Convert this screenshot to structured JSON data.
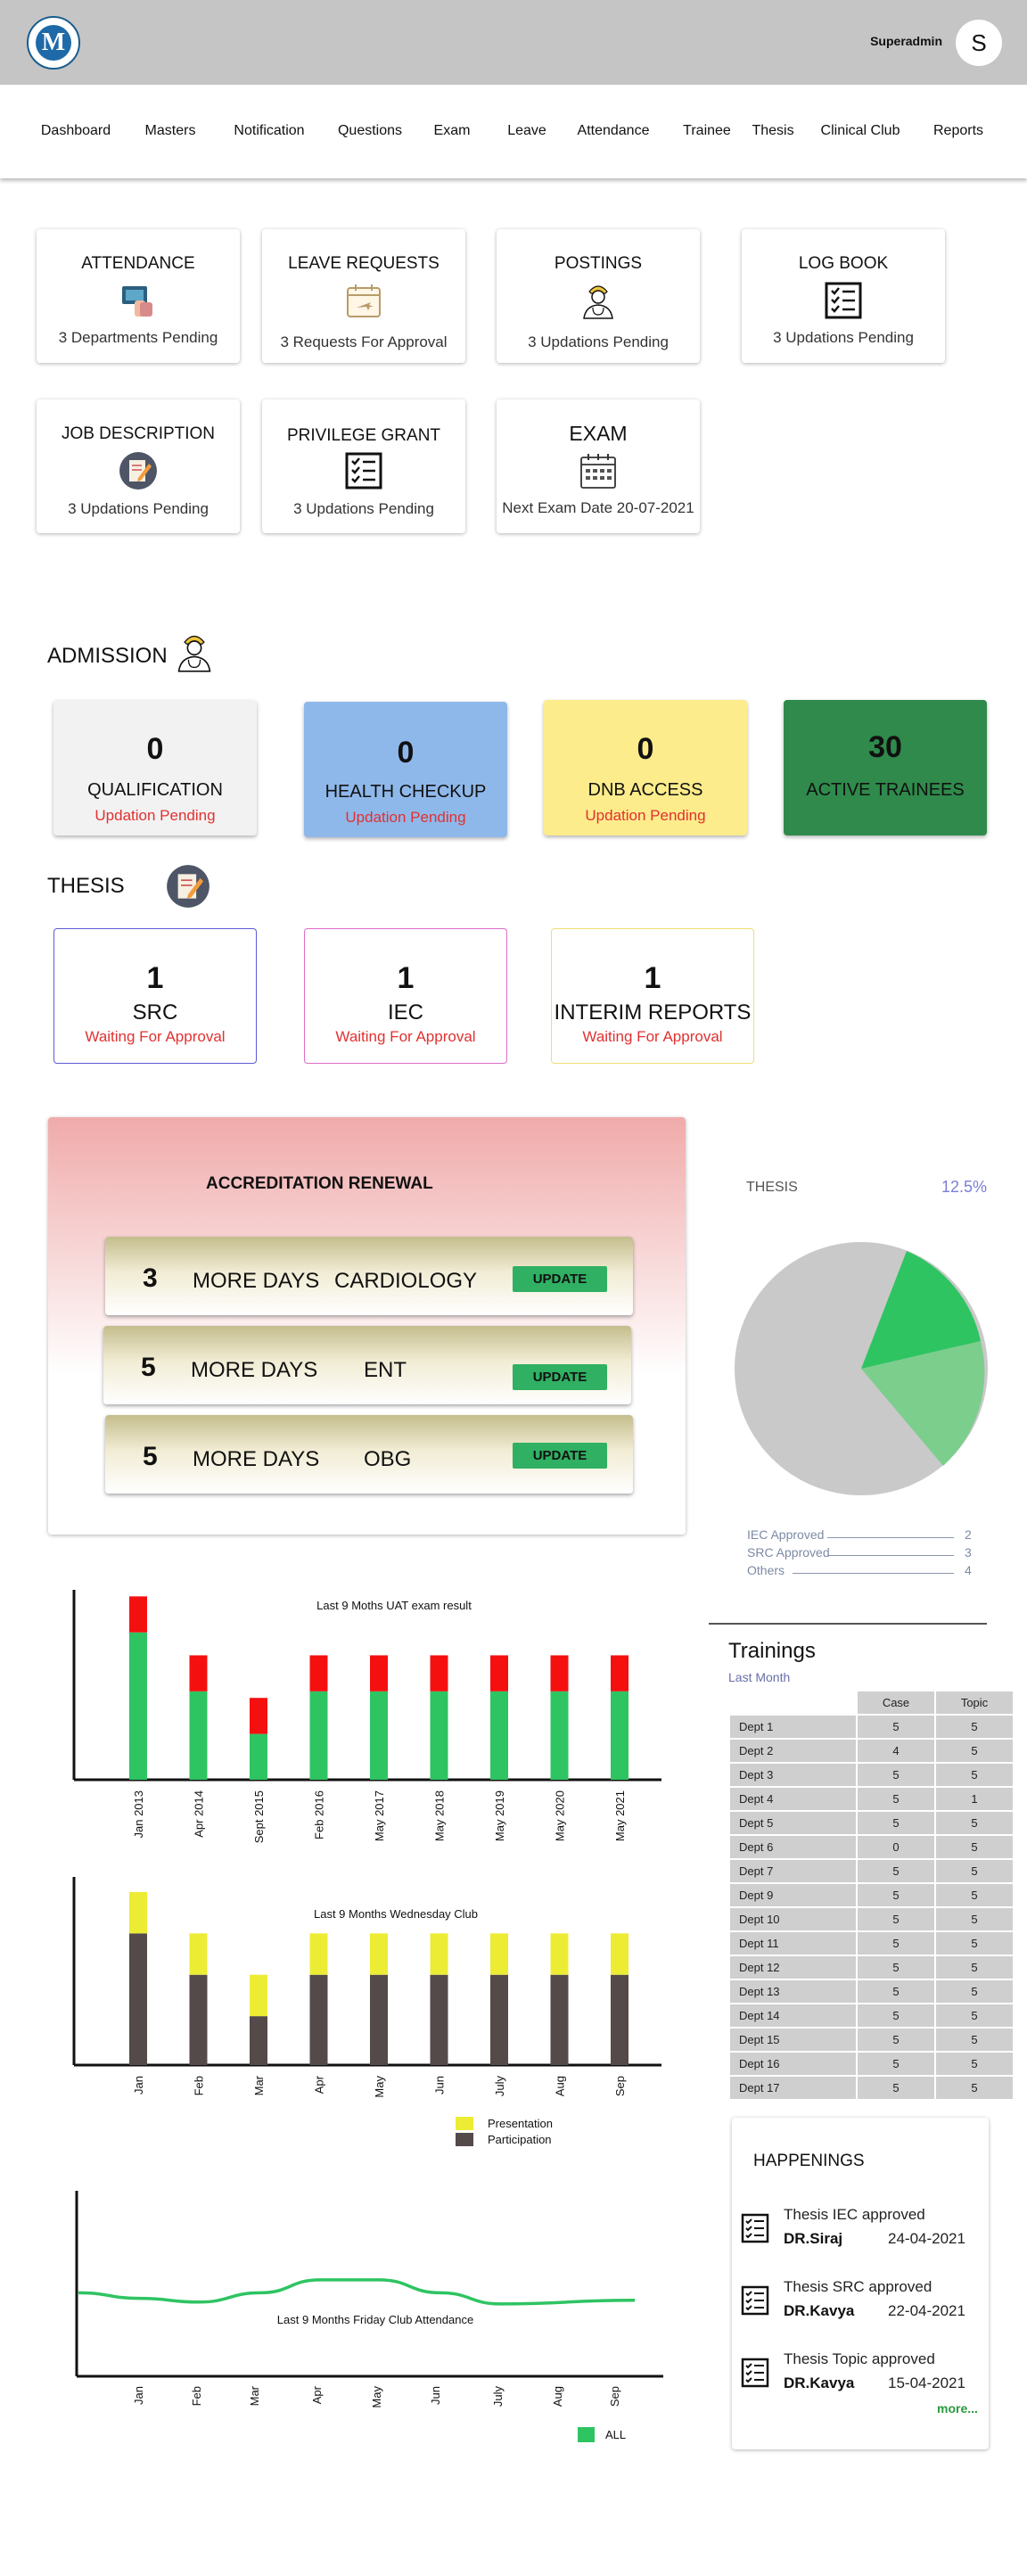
{
  "header": {
    "user": "Superadmin",
    "avatar_letter": "S",
    "logo_letter": "M"
  },
  "nav": [
    "Dashboard",
    "Masters",
    "Notification",
    "Questions",
    "Exam",
    "Leave",
    "Attendance",
    "Trainee",
    "Thesis",
    "Clinical Club",
    "Reports"
  ],
  "cards": [
    {
      "title": "ATTENDANCE",
      "sub": "3 Departments Pending",
      "icon": "attendance-icon"
    },
    {
      "title": "LEAVE REQUESTS",
      "sub": "3 Requests For Approval",
      "icon": "calendar-plane-icon"
    },
    {
      "title": "POSTINGS",
      "sub": "3 Updations Pending",
      "icon": "doctor-icon"
    },
    {
      "title": "LOG BOOK",
      "sub": "3 Updations Pending",
      "icon": "checklist-icon"
    },
    {
      "title": "JOB DESCRIPTION",
      "sub": "3 Updations Pending",
      "icon": "edit-document-icon"
    },
    {
      "title": "PRIVILEGE GRANT",
      "sub": "3 Updations Pending",
      "icon": "checklist-icon"
    },
    {
      "title": "EXAM",
      "sub": "Next Exam Date 20-07-2021",
      "icon": "calendar-icon"
    }
  ],
  "admission": {
    "title": "ADMISSION",
    "stats": [
      {
        "num": "0",
        "label": "QUALIFICATION",
        "sub": "Updation Pending",
        "color": "#f2f2f2"
      },
      {
        "num": "0",
        "label": "HEALTH CHECKUP",
        "sub": "Updation Pending",
        "color": "#8fb8ea"
      },
      {
        "num": "0",
        "label": "DNB ACCESS",
        "sub": "Updation Pending",
        "color": "#fdec8b"
      },
      {
        "num": "30",
        "label": "ACTIVE TRAINEES",
        "sub": "",
        "color": "#2f8a4b"
      }
    ]
  },
  "thesis": {
    "title": "THESIS",
    "cards": [
      {
        "num": "1",
        "label": "SRC",
        "sub": "Waiting For Approval",
        "border": "#5b5bd6"
      },
      {
        "num": "1",
        "label": "IEC",
        "sub": "Waiting For Approval",
        "border": "#e06cc8"
      },
      {
        "num": "1",
        "label": "INTERIM REPORTS",
        "sub": "Waiting For Approval",
        "border": "#eee071"
      }
    ]
  },
  "accreditation": {
    "title": "ACCREDITATION RENEWAL",
    "items": [
      {
        "days": "3",
        "label": "MORE DAYS",
        "dept": "CARDIOLOGY",
        "button": "UPDATE"
      },
      {
        "days": "5",
        "label": "MORE DAYS",
        "dept": "ENT",
        "button": "UPDATE"
      },
      {
        "days": "5",
        "label": "MORE DAYS",
        "dept": "OBG",
        "button": "UPDATE"
      }
    ]
  },
  "pie": {
    "title": "THESIS",
    "percent": "12.5%",
    "legend": [
      {
        "label": "IEC Approved",
        "value": "2"
      },
      {
        "label": "SRC Approved",
        "value": "3"
      },
      {
        "label": "Others",
        "value": "4"
      }
    ]
  },
  "chart_data": [
    {
      "type": "bar",
      "title": "Last 9 Moths UAT exam result",
      "categories": [
        "Jan 2013",
        "Apr 2014",
        "Sept 2015",
        "Feb 2016",
        "May 2017",
        "May 2018",
        "May 2019",
        "May 2020",
        "May 2021"
      ],
      "series": [
        {
          "values": [
            45,
            27,
            14,
            27,
            27,
            27,
            27,
            27,
            27
          ],
          "color": "#2ec462"
        },
        {
          "values": [
            11,
            11,
            11,
            11,
            11,
            11,
            11,
            11,
            11
          ],
          "color": "#f51010"
        }
      ],
      "stacked": true,
      "ylim": [
        0,
        58
      ]
    },
    {
      "type": "bar",
      "title": "Last 9 Months Wednesday Club",
      "categories": [
        "Jan",
        "Feb",
        "Mar",
        "Apr",
        "May",
        "Jun",
        "July",
        "Aug",
        "Sep"
      ],
      "series": [
        {
          "name": "Participation",
          "values": [
            35,
            24,
            13,
            24,
            24,
            24,
            24,
            24,
            24
          ],
          "color": "#544a4a"
        },
        {
          "name": "Presentation",
          "values": [
            11,
            11,
            11,
            11,
            11,
            11,
            11,
            11,
            11
          ],
          "color": "#ecec34"
        }
      ],
      "stacked": true,
      "ylim": [
        0,
        50
      ]
    },
    {
      "type": "line",
      "title": "Last 9 Months Friday Club Attendance",
      "categories": [
        "Jan",
        "Feb",
        "Mar",
        "Apr",
        "May",
        "Jun",
        "July",
        "Aug",
        "Sep"
      ],
      "series": [
        {
          "name": "ALL",
          "values": [
            45,
            42,
            40,
            45,
            52,
            52,
            45,
            39,
            41
          ],
          "color": "#2ec462"
        }
      ],
      "ylim": [
        0,
        100
      ]
    }
  ],
  "trainings": {
    "title": "Trainings",
    "subtitle": "Last Month",
    "columns": [
      "Case",
      "Topic"
    ],
    "rows": [
      [
        "Dept 1",
        "5",
        "5"
      ],
      [
        "Dept 2",
        "4",
        "5"
      ],
      [
        "Dept 3",
        "5",
        "5"
      ],
      [
        "Dept 4",
        "5",
        "1"
      ],
      [
        "Dept 5",
        "5",
        "5"
      ],
      [
        "Dept 6",
        "0",
        "5"
      ],
      [
        "Dept 7",
        "5",
        "5"
      ],
      [
        "Dept 9",
        "5",
        "5"
      ],
      [
        "Dept 10",
        "5",
        "5"
      ],
      [
        "Dept 11",
        "5",
        "5"
      ],
      [
        "Dept 12",
        "5",
        "5"
      ],
      [
        "Dept 13",
        "5",
        "5"
      ],
      [
        "Dept 14",
        "5",
        "5"
      ],
      [
        "Dept 15",
        "5",
        "5"
      ],
      [
        "Dept 16",
        "5",
        "5"
      ],
      [
        "Dept 17",
        "5",
        "5"
      ]
    ]
  },
  "happenings": {
    "title": "HAPPENINGS",
    "items": [
      {
        "text": "Thesis IEC approved",
        "name": "DR.Siraj",
        "date": "24-04-2021"
      },
      {
        "text": "Thesis SRC  approved",
        "name": "DR.Kavya",
        "date": "22-04-2021"
      },
      {
        "text": "Thesis Topic  approved",
        "name": "DR.Kavya",
        "date": "15-04-2021"
      }
    ],
    "more": "more..."
  }
}
